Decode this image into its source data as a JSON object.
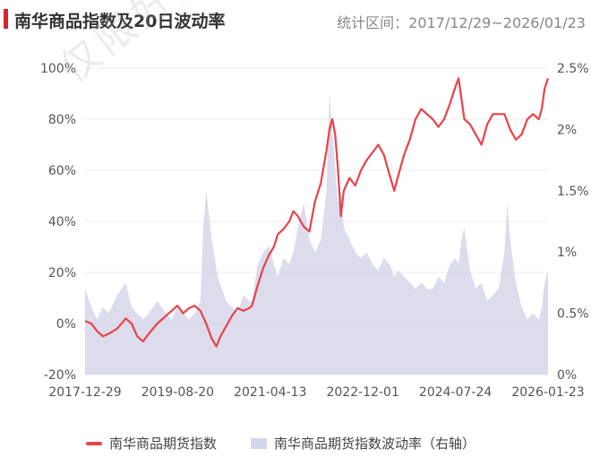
{
  "header": {
    "title": "南华商品指数及20日波动率",
    "range_text": "统计区间：2017/12/29~2026/01/23"
  },
  "watermark": "仅限好买基金指定接收人使",
  "chart_data": {
    "type": "line+area",
    "x_tick_labels": [
      "2017-12-29",
      "2019-08-20",
      "2021-04-13",
      "2022-12-01",
      "2024-07-24",
      "2026-01-23"
    ],
    "x_range": [
      2017.99,
      2026.06
    ],
    "left_axis": {
      "ticks": [
        "100%",
        "80%",
        "60%",
        "40%",
        "20%",
        "0%",
        "-20%"
      ],
      "ylim": [
        -20,
        100
      ],
      "unit": "%"
    },
    "right_axis": {
      "ticks": [
        "2.5%",
        "2%",
        "1.5%",
        "1%",
        "0.5%",
        "0%"
      ],
      "ylim": [
        0,
        2.5
      ],
      "unit": "%"
    },
    "grid": "horizontal",
    "legend_position": "bottom",
    "series": [
      {
        "name": "南华商品期货指数",
        "axis": "left",
        "kind": "line",
        "color": "#e8424a",
        "points": [
          [
            2017.99,
            1
          ],
          [
            2018.1,
            0
          ],
          [
            2018.2,
            -3
          ],
          [
            2018.3,
            -5
          ],
          [
            2018.4,
            -4
          ],
          [
            2018.55,
            -2
          ],
          [
            2018.7,
            2
          ],
          [
            2018.8,
            0
          ],
          [
            2018.9,
            -5
          ],
          [
            2019.0,
            -7
          ],
          [
            2019.1,
            -4
          ],
          [
            2019.25,
            0
          ],
          [
            2019.4,
            3
          ],
          [
            2019.5,
            5
          ],
          [
            2019.6,
            7
          ],
          [
            2019.7,
            4
          ],
          [
            2019.8,
            6
          ],
          [
            2019.9,
            7
          ],
          [
            2020.0,
            5
          ],
          [
            2020.1,
            0
          ],
          [
            2020.2,
            -6
          ],
          [
            2020.28,
            -9
          ],
          [
            2020.35,
            -5
          ],
          [
            2020.45,
            -1
          ],
          [
            2020.55,
            3
          ],
          [
            2020.65,
            6
          ],
          [
            2020.75,
            5
          ],
          [
            2020.85,
            6
          ],
          [
            2020.9,
            7
          ],
          [
            2021.0,
            15
          ],
          [
            2021.1,
            22
          ],
          [
            2021.2,
            27
          ],
          [
            2021.28,
            30
          ],
          [
            2021.35,
            35
          ],
          [
            2021.45,
            37
          ],
          [
            2021.55,
            40
          ],
          [
            2021.62,
            44
          ],
          [
            2021.7,
            42
          ],
          [
            2021.8,
            38
          ],
          [
            2021.9,
            36
          ],
          [
            2022.0,
            48
          ],
          [
            2022.1,
            55
          ],
          [
            2022.2,
            68
          ],
          [
            2022.25,
            76
          ],
          [
            2022.3,
            80
          ],
          [
            2022.35,
            74
          ],
          [
            2022.4,
            60
          ],
          [
            2022.45,
            42
          ],
          [
            2022.5,
            52
          ],
          [
            2022.6,
            57
          ],
          [
            2022.7,
            54
          ],
          [
            2022.8,
            60
          ],
          [
            2022.9,
            64
          ],
          [
            2023.0,
            67
          ],
          [
            2023.1,
            70
          ],
          [
            2023.2,
            66
          ],
          [
            2023.3,
            58
          ],
          [
            2023.38,
            52
          ],
          [
            2023.45,
            58
          ],
          [
            2023.55,
            66
          ],
          [
            2023.65,
            72
          ],
          [
            2023.75,
            80
          ],
          [
            2023.85,
            84
          ],
          [
            2023.95,
            82
          ],
          [
            2024.05,
            80
          ],
          [
            2024.15,
            77
          ],
          [
            2024.25,
            80
          ],
          [
            2024.35,
            86
          ],
          [
            2024.45,
            93
          ],
          [
            2024.5,
            96
          ],
          [
            2024.55,
            88
          ],
          [
            2024.6,
            80
          ],
          [
            2024.7,
            78
          ],
          [
            2024.8,
            74
          ],
          [
            2024.9,
            70
          ],
          [
            2025.0,
            78
          ],
          [
            2025.1,
            82
          ],
          [
            2025.2,
            82
          ],
          [
            2025.3,
            82
          ],
          [
            2025.4,
            76
          ],
          [
            2025.5,
            72
          ],
          [
            2025.6,
            74
          ],
          [
            2025.7,
            80
          ],
          [
            2025.8,
            82
          ],
          [
            2025.9,
            80
          ],
          [
            2025.95,
            84
          ],
          [
            2026.0,
            92
          ],
          [
            2026.06,
            96
          ]
        ]
      },
      {
        "name": "南华商品期货指数波动率（右轴）",
        "axis": "right",
        "kind": "area",
        "color": "#d6d6ea",
        "points": [
          [
            2017.99,
            0.7
          ],
          [
            2018.1,
            0.55
          ],
          [
            2018.2,
            0.45
          ],
          [
            2018.3,
            0.55
          ],
          [
            2018.4,
            0.5
          ],
          [
            2018.55,
            0.65
          ],
          [
            2018.7,
            0.75
          ],
          [
            2018.8,
            0.55
          ],
          [
            2018.9,
            0.5
          ],
          [
            2019.0,
            0.45
          ],
          [
            2019.1,
            0.5
          ],
          [
            2019.25,
            0.6
          ],
          [
            2019.4,
            0.5
          ],
          [
            2019.5,
            0.45
          ],
          [
            2019.6,
            0.55
          ],
          [
            2019.7,
            0.5
          ],
          [
            2019.8,
            0.45
          ],
          [
            2019.9,
            0.5
          ],
          [
            2020.0,
            0.6
          ],
          [
            2020.05,
            1.2
          ],
          [
            2020.1,
            1.5
          ],
          [
            2020.2,
            1.1
          ],
          [
            2020.3,
            0.8
          ],
          [
            2020.45,
            0.6
          ],
          [
            2020.55,
            0.55
          ],
          [
            2020.65,
            0.5
          ],
          [
            2020.75,
            0.65
          ],
          [
            2020.85,
            0.6
          ],
          [
            2020.9,
            0.6
          ],
          [
            2021.0,
            0.9
          ],
          [
            2021.1,
            1.0
          ],
          [
            2021.2,
            1.05
          ],
          [
            2021.28,
            0.9
          ],
          [
            2021.35,
            0.8
          ],
          [
            2021.45,
            0.95
          ],
          [
            2021.55,
            0.9
          ],
          [
            2021.62,
            1.0
          ],
          [
            2021.7,
            1.2
          ],
          [
            2021.8,
            1.4
          ],
          [
            2021.9,
            1.1
          ],
          [
            2022.0,
            1.0
          ],
          [
            2022.1,
            1.1
          ],
          [
            2022.2,
            1.5
          ],
          [
            2022.25,
            2.3
          ],
          [
            2022.3,
            2.0
          ],
          [
            2022.35,
            1.7
          ],
          [
            2022.4,
            1.4
          ],
          [
            2022.45,
            1.5
          ],
          [
            2022.5,
            1.2
          ],
          [
            2022.6,
            1.1
          ],
          [
            2022.7,
            1.0
          ],
          [
            2022.8,
            0.95
          ],
          [
            2022.9,
            1.0
          ],
          [
            2023.0,
            0.9
          ],
          [
            2023.1,
            0.85
          ],
          [
            2023.2,
            0.95
          ],
          [
            2023.3,
            0.9
          ],
          [
            2023.38,
            0.8
          ],
          [
            2023.45,
            0.85
          ],
          [
            2023.55,
            0.8
          ],
          [
            2023.65,
            0.75
          ],
          [
            2023.75,
            0.7
          ],
          [
            2023.85,
            0.75
          ],
          [
            2023.95,
            0.7
          ],
          [
            2024.05,
            0.7
          ],
          [
            2024.15,
            0.8
          ],
          [
            2024.25,
            0.75
          ],
          [
            2024.35,
            0.9
          ],
          [
            2024.45,
            0.95
          ],
          [
            2024.5,
            0.9
          ],
          [
            2024.55,
            1.1
          ],
          [
            2024.6,
            1.2
          ],
          [
            2024.7,
            0.85
          ],
          [
            2024.8,
            0.7
          ],
          [
            2024.9,
            0.75
          ],
          [
            2025.0,
            0.6
          ],
          [
            2025.1,
            0.65
          ],
          [
            2025.2,
            0.7
          ],
          [
            2025.3,
            1.0
          ],
          [
            2025.35,
            1.4
          ],
          [
            2025.4,
            1.1
          ],
          [
            2025.5,
            0.75
          ],
          [
            2025.6,
            0.55
          ],
          [
            2025.7,
            0.45
          ],
          [
            2025.8,
            0.5
          ],
          [
            2025.9,
            0.45
          ],
          [
            2025.95,
            0.55
          ],
          [
            2026.0,
            0.75
          ],
          [
            2026.06,
            0.85
          ]
        ]
      }
    ]
  }
}
